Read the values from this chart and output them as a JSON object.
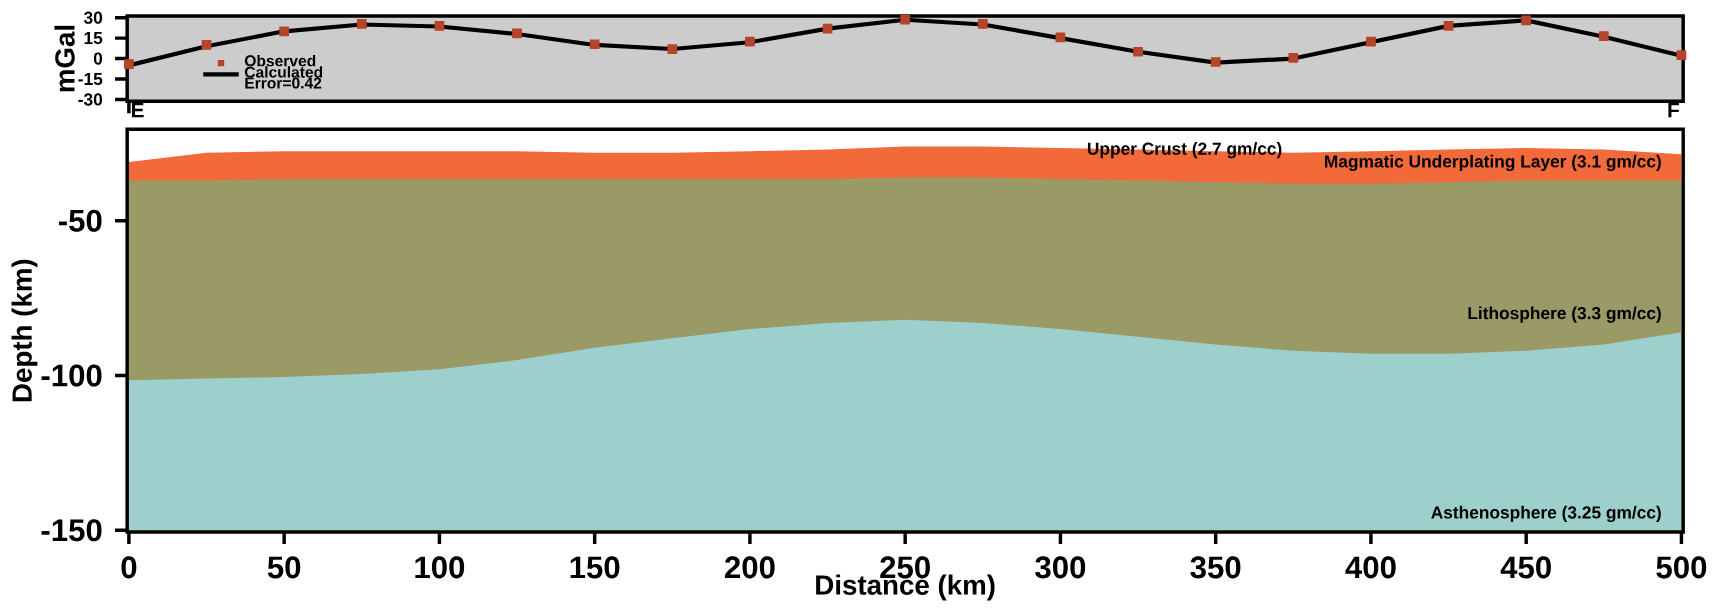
{
  "chart_data": [
    {
      "type": "line",
      "ylabel": "mGal",
      "xlim": [
        0,
        500
      ],
      "ylim": [
        -30,
        30
      ],
      "yticks": [
        -30,
        -15,
        0,
        15,
        30
      ],
      "tick_labels": "y",
      "legend": "bottom left",
      "x": [
        0,
        25,
        50,
        75,
        100,
        125,
        150,
        175,
        200,
        225,
        250,
        275,
        300,
        325,
        350,
        375,
        400,
        425,
        450,
        475,
        500
      ],
      "series": [
        {
          "name": "Observed",
          "type": "scatter",
          "marker": "square",
          "color": "#b5442a",
          "values": [
            -4,
            10,
            20,
            25.5,
            24,
            18.5,
            10.5,
            7,
            12.5,
            22,
            28.5,
            25.5,
            15.5,
            5,
            -2.5,
            0.5,
            12.5,
            24,
            28,
            16.5,
            2.5
          ]
        },
        {
          "name": "Calculated",
          "type": "line",
          "marker": "none",
          "color": "#000000",
          "values": [
            -5,
            9,
            20,
            25,
            23.5,
            18,
            10,
            7,
            12,
            22,
            28.5,
            25,
            15,
            5,
            -3,
            0,
            12,
            24,
            28,
            16,
            2
          ]
        }
      ],
      "annotations": [
        "Error=0.42",
        "E",
        "F"
      ]
    },
    {
      "type": "area",
      "xlabel": "Distance (km)",
      "ylabel": "Depth (km)",
      "xlim": [
        0,
        500
      ],
      "ylim": [
        -150,
        -21
      ],
      "xticks": [
        0,
        50,
        100,
        150,
        200,
        250,
        300,
        350,
        400,
        450,
        500
      ],
      "yticks": [
        -150,
        -100,
        -50
      ],
      "x": [
        0,
        25,
        50,
        75,
        100,
        125,
        150,
        175,
        200,
        225,
        250,
        275,
        300,
        325,
        350,
        375,
        400,
        425,
        450,
        475,
        500
      ],
      "series": [
        {
          "color": "#9a9a66",
          "values": [
            -101.5,
            -101,
            -100.5,
            -99.5,
            -98,
            -95,
            -91,
            -88,
            -85,
            -83,
            -82,
            -83,
            -85,
            -87.5,
            -90,
            -92,
            -93,
            -93,
            -92,
            -90,
            -86
          ]
        },
        {
          "color": "#f2693a",
          "values": [
            -37,
            -37,
            -36.5,
            -36.5,
            -36.5,
            -36.5,
            -36.5,
            -36.5,
            -36.5,
            -36.5,
            -36,
            -36,
            -36.5,
            -37,
            -37.5,
            -38,
            -38,
            -37.5,
            -37,
            -37,
            -37
          ]
        },
        {
          "color": "#ffffff",
          "values": [
            -31,
            -28,
            -27.5,
            -27.5,
            -27.5,
            -27.5,
            -28,
            -28,
            -27.5,
            -27,
            -26,
            -26,
            -26.5,
            -27,
            -27.5,
            -28,
            -27.5,
            -27,
            -26.5,
            -27,
            -28.5
          ]
        }
      ],
      "annotations": [
        "Upper Crust (2.7 gm/cc)",
        "Magmatic Underplating Layer (3.1 gm/cc)",
        "Lithosphere (3.3 gm/cc)",
        "Asthenosphere (3.25 gm/cc)"
      ]
    }
  ]
}
